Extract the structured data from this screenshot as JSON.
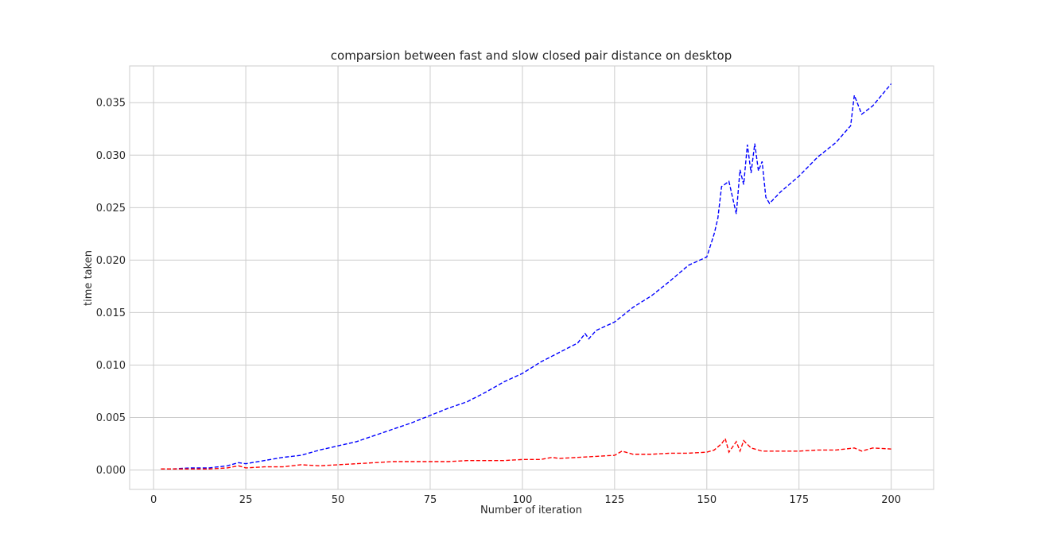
{
  "chart_data": {
    "type": "line",
    "title": "comparsion between fast and slow closed pair distance on desktop",
    "xlabel": "Number of iteration",
    "ylabel": "time taken",
    "xlim": [
      -6.5,
      211.5
    ],
    "ylim": [
      -0.00185,
      0.0385
    ],
    "xticks": [
      0,
      25,
      50,
      75,
      100,
      125,
      150,
      175,
      200
    ],
    "xtick_labels": [
      "0",
      "25",
      "50",
      "75",
      "100",
      "125",
      "150",
      "175",
      "200"
    ],
    "yticks": [
      0.0,
      0.005,
      0.01,
      0.015,
      0.02,
      0.025,
      0.03,
      0.035
    ],
    "ytick_labels": [
      "0.000",
      "0.005",
      "0.010",
      "0.015",
      "0.020",
      "0.025",
      "0.030",
      "0.035"
    ],
    "grid": true,
    "legend": "none",
    "series": [
      {
        "color": "#0000ff",
        "linestyle": "dashed",
        "points": [
          [
            2,
            0.0001
          ],
          [
            5,
            0.0001
          ],
          [
            10,
            0.0002
          ],
          [
            15,
            0.0002
          ],
          [
            20,
            0.0004
          ],
          [
            23,
            0.0007
          ],
          [
            25,
            0.0006
          ],
          [
            30,
            0.0009
          ],
          [
            35,
            0.0012
          ],
          [
            40,
            0.0014
          ],
          [
            45,
            0.0019
          ],
          [
            50,
            0.0023
          ],
          [
            55,
            0.0027
          ],
          [
            60,
            0.0033
          ],
          [
            65,
            0.0039
          ],
          [
            70,
            0.0045
          ],
          [
            75,
            0.0052
          ],
          [
            80,
            0.0059
          ],
          [
            85,
            0.0065
          ],
          [
            90,
            0.0074
          ],
          [
            95,
            0.0084
          ],
          [
            100,
            0.0092
          ],
          [
            105,
            0.0103
          ],
          [
            110,
            0.0112
          ],
          [
            115,
            0.0121
          ],
          [
            117,
            0.013
          ],
          [
            118,
            0.0125
          ],
          [
            120,
            0.0133
          ],
          [
            125,
            0.0141
          ],
          [
            130,
            0.0155
          ],
          [
            135,
            0.0166
          ],
          [
            140,
            0.018
          ],
          [
            145,
            0.0195
          ],
          [
            150,
            0.0203
          ],
          [
            152,
            0.0225
          ],
          [
            153,
            0.024
          ],
          [
            154,
            0.027
          ],
          [
            156,
            0.0275
          ],
          [
            158,
            0.0244
          ],
          [
            159,
            0.0286
          ],
          [
            160,
            0.0272
          ],
          [
            161,
            0.031
          ],
          [
            162,
            0.0283
          ],
          [
            163,
            0.0311
          ],
          [
            164,
            0.0285
          ],
          [
            165,
            0.0294
          ],
          [
            166,
            0.026
          ],
          [
            167,
            0.0254
          ],
          [
            170,
            0.0265
          ],
          [
            175,
            0.028
          ],
          [
            180,
            0.0298
          ],
          [
            185,
            0.0312
          ],
          [
            189,
            0.0328
          ],
          [
            190,
            0.0357
          ],
          [
            192,
            0.0339
          ],
          [
            195,
            0.0347
          ],
          [
            200,
            0.0368
          ]
        ]
      },
      {
        "color": "#ff0000",
        "linestyle": "dashed",
        "points": [
          [
            2,
            0.0001
          ],
          [
            5,
            0.0001
          ],
          [
            10,
            0.0001
          ],
          [
            15,
            0.0001
          ],
          [
            20,
            0.0002
          ],
          [
            23,
            0.0004
          ],
          [
            25,
            0.0002
          ],
          [
            30,
            0.0003
          ],
          [
            35,
            0.0003
          ],
          [
            40,
            0.0005
          ],
          [
            45,
            0.0004
          ],
          [
            50,
            0.0005
          ],
          [
            55,
            0.0006
          ],
          [
            60,
            0.0007
          ],
          [
            65,
            0.0008
          ],
          [
            70,
            0.0008
          ],
          [
            75,
            0.0008
          ],
          [
            80,
            0.0008
          ],
          [
            85,
            0.0009
          ],
          [
            90,
            0.0009
          ],
          [
            95,
            0.0009
          ],
          [
            100,
            0.001
          ],
          [
            105,
            0.001
          ],
          [
            108,
            0.0012
          ],
          [
            110,
            0.0011
          ],
          [
            115,
            0.0012
          ],
          [
            120,
            0.0013
          ],
          [
            125,
            0.0014
          ],
          [
            127,
            0.0018
          ],
          [
            130,
            0.0015
          ],
          [
            135,
            0.0015
          ],
          [
            140,
            0.0016
          ],
          [
            145,
            0.0016
          ],
          [
            150,
            0.0017
          ],
          [
            152,
            0.0019
          ],
          [
            154,
            0.0025
          ],
          [
            155,
            0.003
          ],
          [
            156,
            0.0017
          ],
          [
            157,
            0.0022
          ],
          [
            158,
            0.0027
          ],
          [
            159,
            0.0018
          ],
          [
            160,
            0.0028
          ],
          [
            162,
            0.0021
          ],
          [
            165,
            0.0018
          ],
          [
            170,
            0.0018
          ],
          [
            175,
            0.0018
          ],
          [
            180,
            0.0019
          ],
          [
            185,
            0.0019
          ],
          [
            190,
            0.0021
          ],
          [
            192,
            0.0018
          ],
          [
            195,
            0.0021
          ],
          [
            200,
            0.002
          ]
        ]
      }
    ]
  }
}
